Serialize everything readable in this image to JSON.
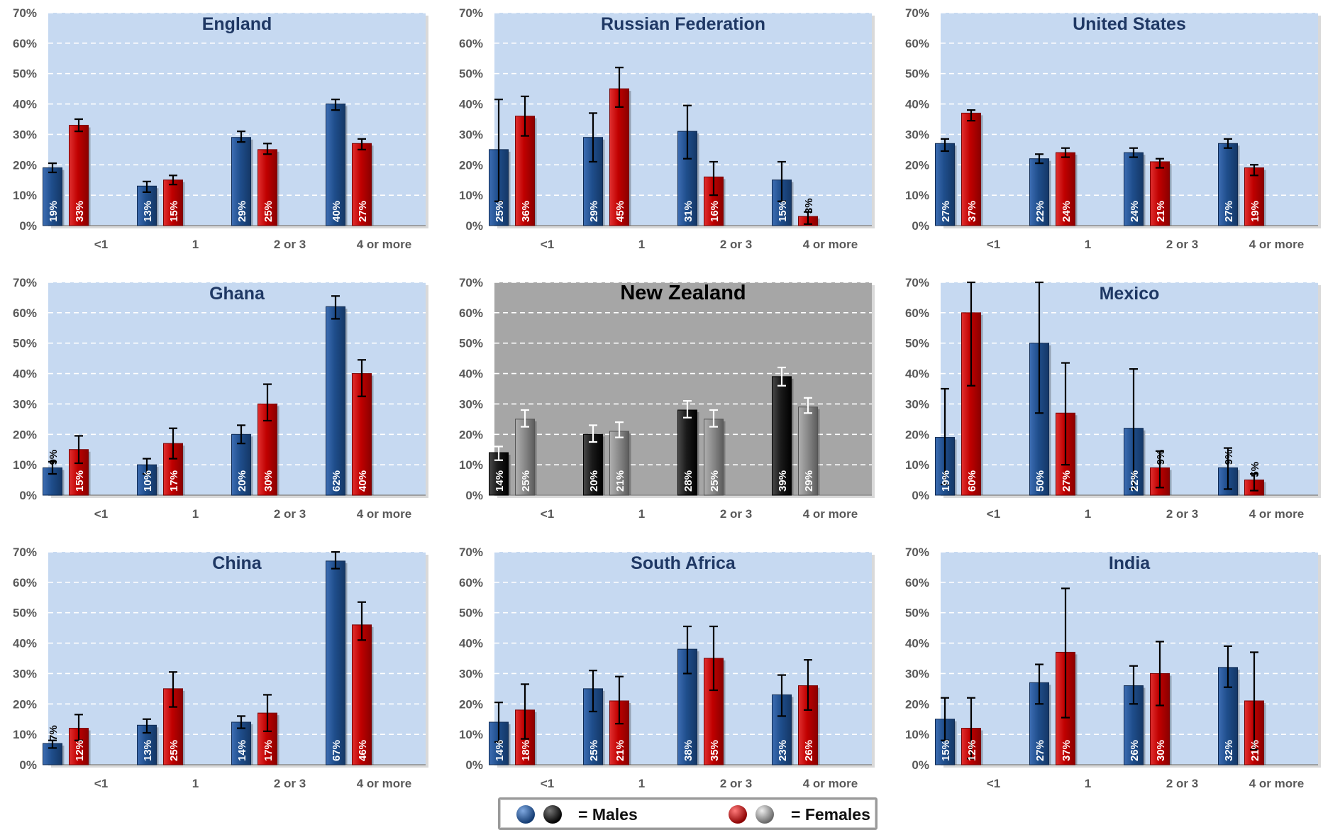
{
  "colors": {
    "male": "#1f4e8c",
    "female": "#c00000",
    "male_alt": "#1a1a1a",
    "female_alt": "#8c8c8c",
    "plot_bg": "#c6d9f1",
    "plot_bg_alt": "#a6a6a6",
    "title": "#1f3864",
    "title_alt": "#000000",
    "axis_text": "#595959"
  },
  "icons": {
    "male_blue": "blue-sphere-icon",
    "male_black": "black-sphere-icon",
    "female_red": "red-sphere-icon",
    "female_gray": "gray-sphere-icon"
  },
  "legend": {
    "males": "= Males",
    "females": "= Females"
  },
  "chart_data": [
    {
      "type": "bar",
      "title": "England",
      "categories": [
        "<1",
        "1",
        "2 or 3",
        "4 or more"
      ],
      "ylim": [
        0,
        70
      ],
      "yticks": [
        "0%",
        "10%",
        "20%",
        "30%",
        "40%",
        "50%",
        "60%",
        "70%"
      ],
      "series": [
        {
          "values": [
            19,
            13,
            29,
            40
          ],
          "labels": [
            "19%",
            "13%",
            "29%",
            "40%"
          ],
          "err_low": [
            17.5,
            11,
            27.5,
            38
          ],
          "err_high": [
            20.5,
            14.5,
            31,
            41.5
          ]
        },
        {
          "values": [
            33,
            15,
            25,
            27
          ],
          "labels": [
            "33%",
            "15%",
            "25%",
            "27%"
          ],
          "err_low": [
            31,
            13.5,
            23.5,
            25
          ],
          "err_high": [
            35,
            16.5,
            27,
            28.5
          ]
        }
      ]
    },
    {
      "type": "bar",
      "title": "Russian Federation",
      "categories": [
        "<1",
        "1",
        "2 or 3",
        "4 or more"
      ],
      "ylim": [
        0,
        70
      ],
      "yticks": [
        "0%",
        "10%",
        "20%",
        "30%",
        "40%",
        "50%",
        "60%",
        "70%"
      ],
      "series": [
        {
          "values": [
            25,
            29,
            31,
            15
          ],
          "labels": [
            "25%",
            "29%",
            "31%",
            "15%"
          ],
          "err_low": [
            8,
            21,
            22,
            8
          ],
          "err_high": [
            41.5,
            37,
            39.5,
            21
          ]
        },
        {
          "values": [
            36,
            45,
            16,
            3
          ],
          "labels": [
            "36%",
            "45%",
            "16%",
            "3%"
          ],
          "err_low": [
            29.5,
            39,
            10,
            0.5
          ],
          "err_high": [
            42.5,
            52,
            21,
            4.5
          ]
        }
      ]
    },
    {
      "type": "bar",
      "title": "United States",
      "categories": [
        "<1",
        "1",
        "2 or 3",
        "4 or more"
      ],
      "ylim": [
        0,
        70
      ],
      "yticks": [
        "0%",
        "10%",
        "20%",
        "30%",
        "40%",
        "50%",
        "60%",
        "70%"
      ],
      "series": [
        {
          "values": [
            27,
            22,
            24,
            27
          ],
          "labels": [
            "27%",
            "22%",
            "24%",
            "27%"
          ],
          "err_low": [
            24.5,
            20.5,
            22.5,
            25.5
          ],
          "err_high": [
            28.5,
            23.5,
            25.5,
            28.5
          ]
        },
        {
          "values": [
            37,
            24,
            21,
            19
          ],
          "labels": [
            "37%",
            "24%",
            "21%",
            "19%"
          ],
          "err_low": [
            34.5,
            22.5,
            19,
            16.5
          ],
          "err_high": [
            38,
            25.5,
            22,
            20
          ]
        }
      ]
    },
    {
      "type": "bar",
      "title": "Ghana",
      "categories": [
        "<1",
        "1",
        "2 or 3",
        "4 or more"
      ],
      "ylim": [
        0,
        70
      ],
      "yticks": [
        "0%",
        "10%",
        "20%",
        "30%",
        "40%",
        "50%",
        "60%",
        "70%"
      ],
      "series": [
        {
          "values": [
            9,
            10,
            20,
            62
          ],
          "labels": [
            "9%",
            "10%",
            "20%",
            "62%"
          ],
          "err_low": [
            7,
            7,
            17,
            58
          ],
          "err_high": [
            11,
            12,
            23,
            65.5
          ]
        },
        {
          "values": [
            15,
            17,
            30,
            40
          ],
          "labels": [
            "15%",
            "17%",
            "30%",
            "40%"
          ],
          "err_low": [
            10.5,
            12,
            24.5,
            32.5
          ],
          "err_high": [
            19.5,
            22,
            36.5,
            44.5
          ]
        }
      ]
    },
    {
      "type": "bar",
      "title": "New Zealand",
      "alt": true,
      "categories": [
        "<1",
        "1",
        "2 or 3",
        "4 or more"
      ],
      "ylim": [
        0,
        70
      ],
      "yticks": [
        "0%",
        "10%",
        "20%",
        "30%",
        "40%",
        "50%",
        "60%",
        "70%"
      ],
      "series": [
        {
          "values": [
            14,
            20,
            28,
            39
          ],
          "labels": [
            "14%",
            "20%",
            "28%",
            "39%"
          ],
          "err_low": [
            11.5,
            17.5,
            25.5,
            36
          ],
          "err_high": [
            16,
            23,
            31,
            42
          ]
        },
        {
          "values": [
            25,
            21,
            25,
            29
          ],
          "labels": [
            "25%",
            "21%",
            "25%",
            "29%"
          ],
          "err_low": [
            22.5,
            19,
            22.5,
            27
          ],
          "err_high": [
            28,
            24,
            28,
            32
          ]
        }
      ]
    },
    {
      "type": "bar",
      "title": "Mexico",
      "categories": [
        "<1",
        "1",
        "2 or 3",
        "4 or more"
      ],
      "ylim": [
        0,
        70
      ],
      "yticks": [
        "0%",
        "10%",
        "20%",
        "30%",
        "40%",
        "50%",
        "60%",
        "70%"
      ],
      "series": [
        {
          "values": [
            19,
            50,
            22,
            9
          ],
          "labels": [
            "19%",
            "50%",
            "22%",
            "9%"
          ],
          "err_low": [
            3.5,
            27,
            2,
            2
          ],
          "err_high": [
            35,
            70,
            41.5,
            15.5
          ]
        },
        {
          "values": [
            60,
            27,
            9,
            5
          ],
          "labels": [
            "60%",
            "27%",
            "9%",
            "5%"
          ],
          "err_low": [
            36,
            10,
            2.5,
            1.5
          ],
          "err_high": [
            70,
            43.5,
            14.5,
            7
          ]
        }
      ]
    },
    {
      "type": "bar",
      "title": "China",
      "categories": [
        "<1",
        "1",
        "2 or 3",
        "4 or more"
      ],
      "ylim": [
        0,
        70
      ],
      "yticks": [
        "0%",
        "10%",
        "20%",
        "30%",
        "40%",
        "50%",
        "60%",
        "70%"
      ],
      "series": [
        {
          "values": [
            7,
            13,
            14,
            67
          ],
          "labels": [
            "7%",
            "13%",
            "14%",
            "67%"
          ],
          "err_low": [
            5.5,
            10.5,
            12,
            64.5
          ],
          "err_high": [
            8,
            15,
            16,
            70
          ]
        },
        {
          "values": [
            12,
            25,
            17,
            46
          ],
          "labels": [
            "12%",
            "25%",
            "17%",
            "46%"
          ],
          "err_low": [
            8,
            19,
            11,
            41
          ],
          "err_high": [
            16.5,
            30.5,
            23,
            53.5
          ]
        }
      ]
    },
    {
      "type": "bar",
      "title": "South Africa",
      "categories": [
        "<1",
        "1",
        "2 or 3",
        "4 or more"
      ],
      "ylim": [
        0,
        70
      ],
      "yticks": [
        "0%",
        "10%",
        "20%",
        "30%",
        "40%",
        "50%",
        "60%",
        "70%"
      ],
      "series": [
        {
          "values": [
            14,
            25,
            38,
            23
          ],
          "labels": [
            "14%",
            "25%",
            "38%",
            "23%"
          ],
          "err_low": [
            7.5,
            17.5,
            30,
            16
          ],
          "err_high": [
            20.5,
            31,
            45.5,
            29.5
          ]
        },
        {
          "values": [
            18,
            21,
            35,
            26
          ],
          "labels": [
            "18%",
            "21%",
            "35%",
            "26%"
          ],
          "err_low": [
            8.5,
            13.5,
            24.5,
            18
          ],
          "err_high": [
            26.5,
            29,
            45.5,
            34.5
          ]
        }
      ]
    },
    {
      "type": "bar",
      "title": "India",
      "categories": [
        "<1",
        "1",
        "2 or 3",
        "4 or more"
      ],
      "ylim": [
        0,
        70
      ],
      "yticks": [
        "0%",
        "10%",
        "20%",
        "30%",
        "40%",
        "50%",
        "60%",
        "70%"
      ],
      "series": [
        {
          "values": [
            15,
            27,
            26,
            32
          ],
          "labels": [
            "15%",
            "27%",
            "26%",
            "32%"
          ],
          "err_low": [
            8,
            20,
            20,
            25.5
          ],
          "err_high": [
            22,
            33,
            32.5,
            39
          ]
        },
        {
          "values": [
            12,
            37,
            30,
            21
          ],
          "labels": [
            "12%",
            "37%",
            "30%",
            "21%"
          ],
          "err_low": [
            2,
            15.5,
            19.5,
            5
          ],
          "err_high": [
            22,
            58,
            40.5,
            37
          ]
        }
      ]
    }
  ]
}
